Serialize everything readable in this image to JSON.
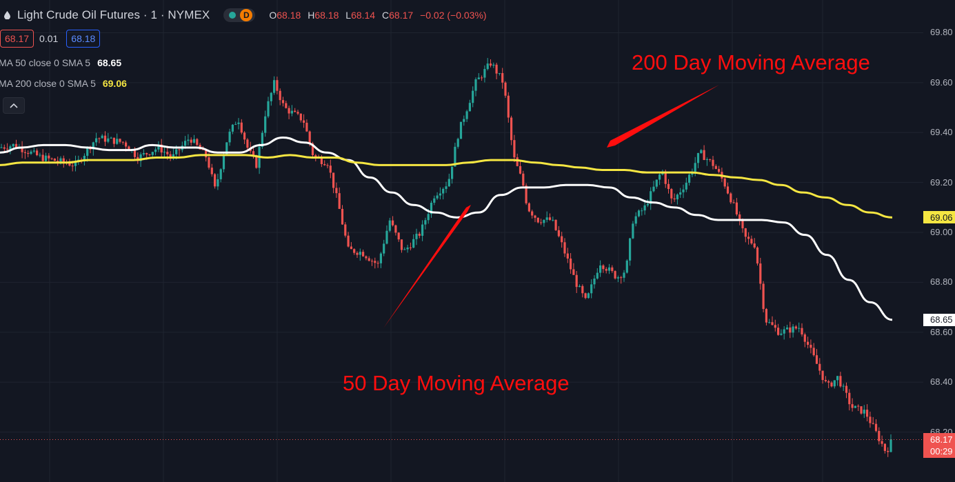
{
  "header": {
    "title": "Light Crude Oil Futures · 1 · NYMEX",
    "interval_badge": "D",
    "ohlc": [
      {
        "key": "O",
        "value": "68.18"
      },
      {
        "key": "H",
        "value": "68.18"
      },
      {
        "key": "L",
        "value": "68.14"
      },
      {
        "key": "C",
        "value": "68.17"
      }
    ],
    "change": "−0.02 (−0.03%)",
    "bid": "68.17",
    "spread": "0.01",
    "ask": "68.18"
  },
  "indicators": [
    {
      "label": "MA 50 close 0 SMA 5",
      "value": "68.65",
      "color": "#ffffff"
    },
    {
      "label": "MA 200 close 0 SMA 5",
      "value": "69.06",
      "color": "#f5e642"
    }
  ],
  "price_tags": {
    "ma200": "69.06",
    "ma50": "68.65",
    "last": "68.17",
    "countdown": "00:29"
  },
  "annotations": {
    "ma200_label": "200 Day Moving Average",
    "ma50_label": "50 Day Moving  Average"
  },
  "colors": {
    "background": "#131722",
    "up": "#26a69a",
    "down": "#ef5350",
    "ma50": "#ffffff",
    "ma200": "#f5e642",
    "annotation": "#ff0e0e"
  },
  "chart_data": {
    "type": "line",
    "ylim": [
      68.0,
      69.84
    ],
    "y_ticks": [
      "69.80",
      "69.60",
      "69.40",
      "69.20",
      "69.00",
      "68.80",
      "68.60",
      "68.40",
      "68.20"
    ],
    "y_tick_values": [
      69.8,
      69.6,
      69.4,
      69.2,
      69.0,
      68.8,
      68.6,
      68.4,
      68.2
    ],
    "grid": true,
    "legend": "top-left",
    "series": [
      {
        "name": "MA 50 close 0 SMA 5",
        "values": [
          69.32,
          69.34,
          69.35,
          69.35,
          69.34,
          69.33,
          69.33,
          69.35,
          69.34,
          69.34,
          69.32,
          69.32,
          69.35,
          69.38,
          69.36,
          69.32,
          69.29,
          69.22,
          69.16,
          69.11,
          69.08,
          69.06,
          69.08,
          69.15,
          69.18,
          69.18,
          69.19,
          69.19,
          69.18,
          69.14,
          69.12,
          69.1,
          69.07,
          69.05,
          69.05,
          69.05,
          69.04,
          68.99,
          68.91,
          68.81,
          68.72,
          68.65
        ],
        "color": "#ffffff"
      },
      {
        "name": "MA 200 close 0 SMA 5",
        "values": [
          69.27,
          69.28,
          69.28,
          69.28,
          69.29,
          69.29,
          69.29,
          69.3,
          69.3,
          69.31,
          69.31,
          69.31,
          69.3,
          69.31,
          69.3,
          69.3,
          69.28,
          69.27,
          69.27,
          69.27,
          69.27,
          69.28,
          69.29,
          69.29,
          69.28,
          69.27,
          69.26,
          69.25,
          69.25,
          69.24,
          69.24,
          69.24,
          69.23,
          69.22,
          69.21,
          69.19,
          69.16,
          69.14,
          69.11,
          69.08,
          69.06
        ],
        "color": "#f5e642"
      }
    ],
    "candles": {
      "up_color": "#26a69a",
      "down_color": "#ef5350",
      "last_close": 68.17
    }
  }
}
